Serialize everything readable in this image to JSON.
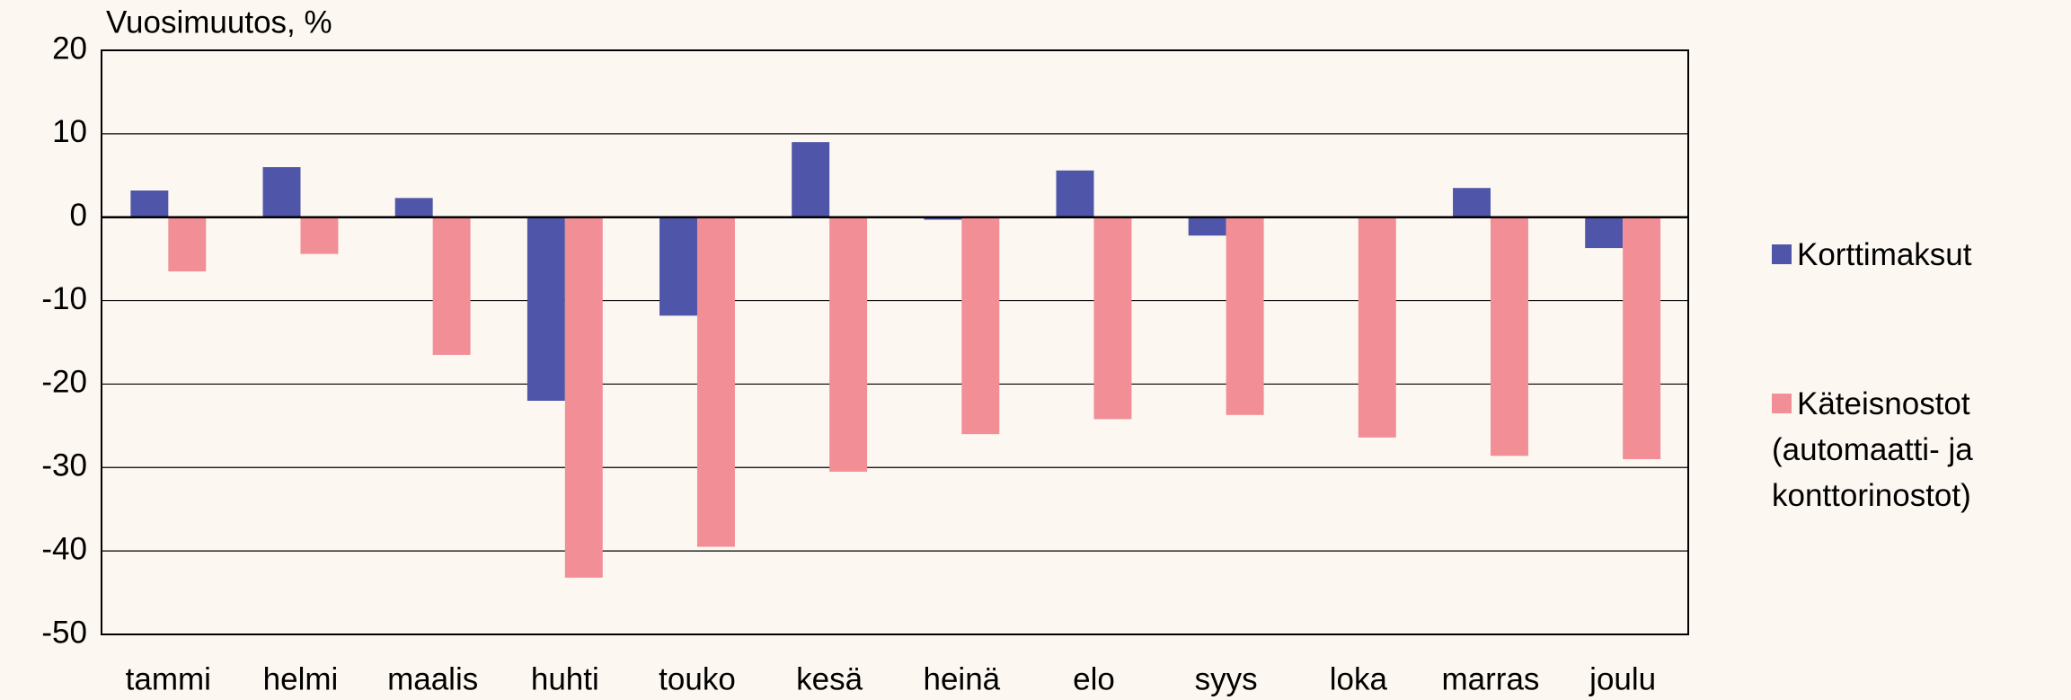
{
  "chart_data": {
    "type": "bar",
    "title": "Vuosimuutos, %",
    "categories": [
      "tammi",
      "helmi",
      "maalis",
      "huhti",
      "touko",
      "kesä",
      "heinä",
      "elo",
      "syys",
      "loka",
      "marras",
      "joulu"
    ],
    "series": [
      {
        "name": "Korttimaksut",
        "color": "#4f55a8",
        "values": [
          3.2,
          6,
          2.3,
          -22,
          -11.8,
          9,
          -0.3,
          5.6,
          -2.2,
          0,
          3.5,
          -3.7
        ]
      },
      {
        "name": "Käteisnostot (automaatti- ja konttorinostot)",
        "color": "#f28e96",
        "values": [
          -6.5,
          -4.4,
          -16.5,
          -43.2,
          -39.5,
          -30.5,
          -26,
          -24.2,
          -23.7,
          -26.4,
          -28.6,
          -29
        ]
      }
    ],
    "ylim": [
      -50,
      20
    ],
    "yticks": [
      -50,
      -40,
      -30,
      -20,
      -10,
      0,
      10,
      20
    ],
    "grid": true
  }
}
